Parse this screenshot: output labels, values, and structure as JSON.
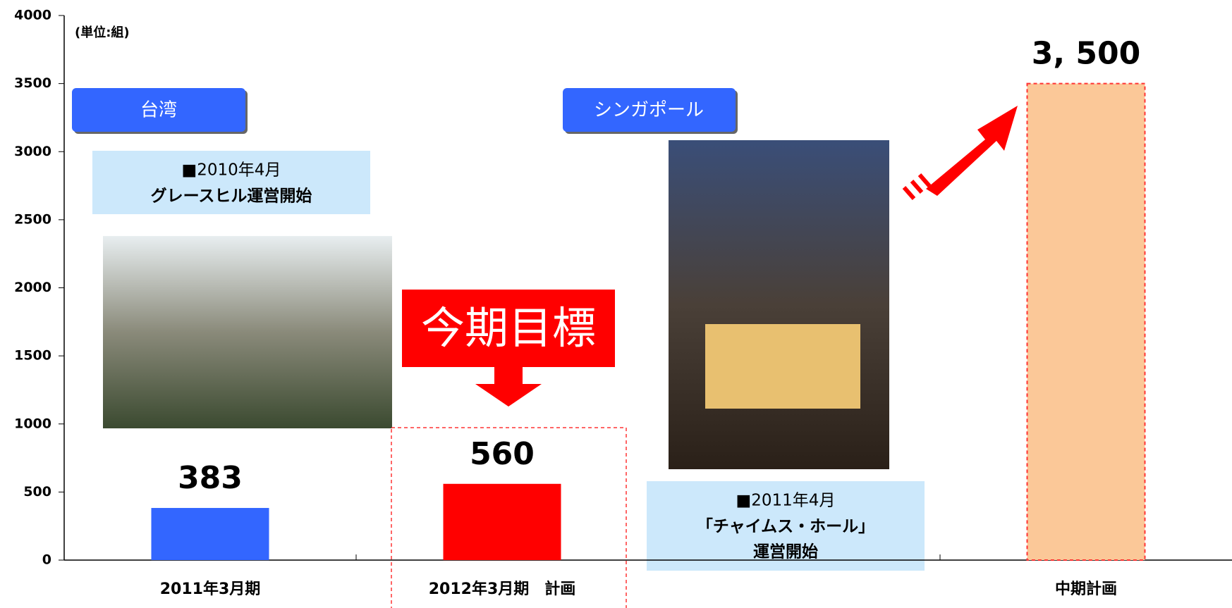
{
  "chart_data": {
    "type": "bar",
    "categories": [
      "2011年3月期",
      "2012年3月期　計画",
      null,
      "中期計画"
    ],
    "values": [
      383,
      560,
      null,
      3500
    ],
    "value_labels": [
      "383",
      "560",
      null,
      "3, 500"
    ],
    "colors": [
      "#3366ff",
      "#ff0000",
      null,
      "#fbc898"
    ],
    "edgecolors": [
      null,
      null,
      null,
      "#ff3333"
    ],
    "ylim": [
      0,
      4000
    ],
    "yticks": [
      0,
      500,
      1000,
      1500,
      2000,
      2500,
      3000,
      3500,
      4000
    ],
    "annotations": {
      "unit": "(単位:組)",
      "taiwan": "台湾",
      "singapore": "シンガポール",
      "note1_date": "■2010年4月",
      "note1_text": "グレースヒル運営開始",
      "target": "今期目標",
      "note2_date": "■2011年4月",
      "note2_name": "「チャイムス・ホール」",
      "note2_text": "運営開始"
    }
  }
}
